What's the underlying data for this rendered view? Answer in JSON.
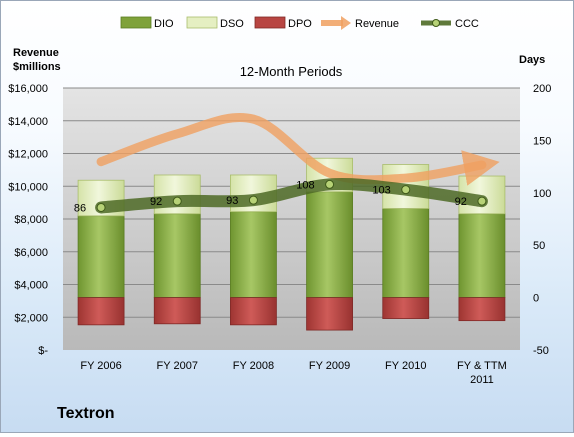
{
  "chart_data": {
    "type": "bar",
    "title": "12-Month Periods",
    "company": "Textron",
    "left_axis_label": [
      "Revenue",
      "$millions"
    ],
    "right_axis_label": "Days",
    "categories": [
      "FY 2006",
      "FY 2007",
      "FY 2008",
      "FY 2009",
      "FY 2010",
      "FY & TTM 2011"
    ],
    "legend": [
      "DIO",
      "DSO",
      "DPO",
      "Revenue",
      "CCC"
    ],
    "series": [
      {
        "name": "DIO",
        "axis": "right",
        "values": [
          78,
          80,
          82,
          101,
          85,
          80
        ],
        "color": "#7fa23a"
      },
      {
        "name": "DSO",
        "axis": "right",
        "values": [
          34,
          37,
          35,
          32,
          42,
          36
        ],
        "color": "#e5efc2"
      },
      {
        "name": "DPO",
        "axis": "right",
        "values": [
          -26,
          -25,
          -26,
          -31,
          -20,
          -22
        ],
        "color": "#b84542"
      },
      {
        "name": "Revenue",
        "axis": "left",
        "values": [
          11500,
          13200,
          14100,
          10800,
          10500,
          11300
        ],
        "color": "#f0a060"
      },
      {
        "name": "CCC",
        "axis": "right",
        "values": [
          86,
          92,
          93,
          108,
          103,
          92
        ],
        "color": "#5d7534"
      }
    ],
    "left_ticks": [
      "$-",
      "$2,000",
      "$4,000",
      "$6,000",
      "$8,000",
      "$10,000",
      "$12,000",
      "$14,000",
      "$16,000"
    ],
    "right_ticks": [
      "-50",
      "0",
      "50",
      "100",
      "150",
      "200"
    ],
    "ylim_left": [
      0,
      16000
    ],
    "ylim_right": [
      -50,
      200
    ],
    "legend_position": "top",
    "grid": true
  }
}
